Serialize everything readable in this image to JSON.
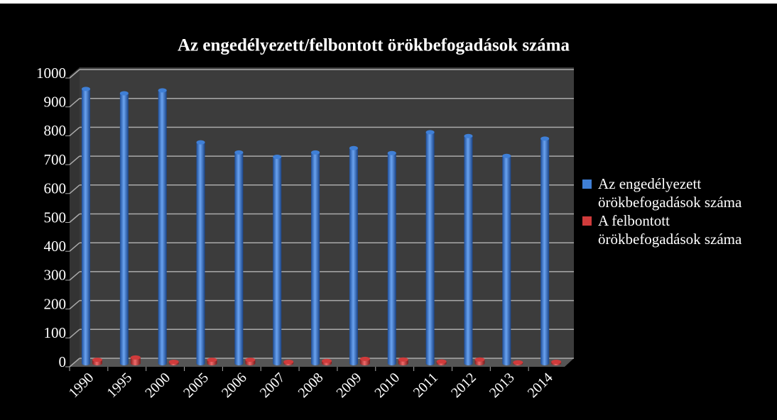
{
  "chart_data": {
    "type": "bar",
    "title": "Az engedélyezett/felbontott örökbefogadások száma",
    "categories": [
      "1990",
      "1995",
      "2000",
      "2005",
      "2006",
      "2007",
      "2008",
      "2009",
      "2010",
      "2011",
      "2012",
      "2013",
      "2014"
    ],
    "series": [
      {
        "name": "Az engedélyezett örökbefogadások száma",
        "color": "#3f7fd6",
        "values": [
          950,
          935,
          945,
          765,
          730,
          715,
          730,
          745,
          728,
          800,
          787,
          718,
          778
        ]
      },
      {
        "name": "A felbontott örökbefogadások száma",
        "color": "#d03b3b",
        "values": [
          12,
          20,
          5,
          12,
          12,
          5,
          8,
          15,
          13,
          6,
          13,
          3,
          5
        ]
      }
    ],
    "ylim": [
      0,
      1000
    ],
    "yticks": [
      0,
      100,
      200,
      300,
      400,
      500,
      600,
      700,
      800,
      900,
      1000
    ],
    "grid": true,
    "legend": "right"
  }
}
